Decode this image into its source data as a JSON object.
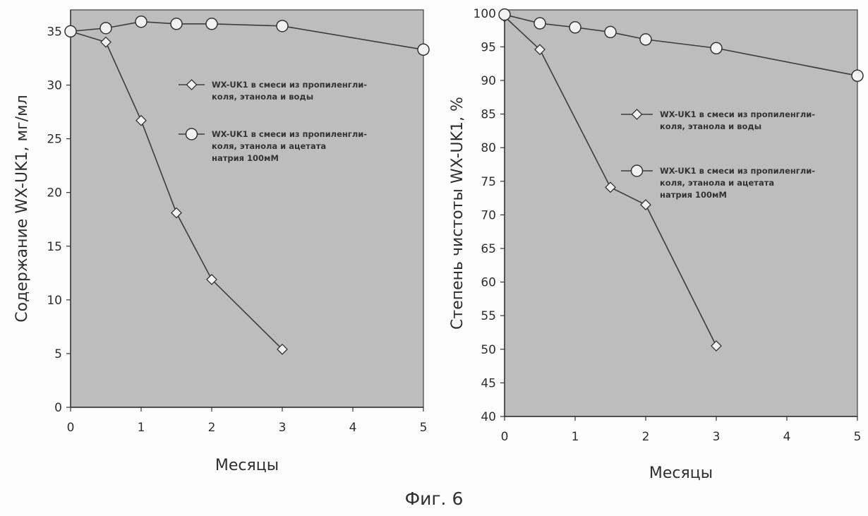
{
  "figure_caption": "Фиг. 6",
  "chart_data": [
    {
      "type": "line",
      "title": "",
      "xlabel": "Месяцы",
      "ylabel": "Содержание WX-UK1, мг/мл",
      "xlim": [
        0,
        5
      ],
      "ylim": [
        0,
        37
      ],
      "xticks": [
        0,
        1,
        2,
        3,
        4,
        5
      ],
      "yticks": [
        0,
        5,
        10,
        15,
        20,
        25,
        30,
        35
      ],
      "grid": false,
      "legend_position": "center-right",
      "series": [
        {
          "name": "WX-UK1 в смеси из пропиленгли-коля, этанола и воды",
          "legend_lines": [
            "WX-UK1 в смеси из пропиленгли-",
            "коля, этанола и воды"
          ],
          "marker": "diamond",
          "x": [
            0,
            0.5,
            1,
            1.5,
            2,
            3
          ],
          "y": [
            35,
            34,
            26.7,
            18.1,
            11.9,
            5.4
          ]
        },
        {
          "name": "WX-UK1 в смеси из пропиленгли-коля, этанола и ацетата натрия 100мМ",
          "legend_lines": [
            "WX-UK1 в смеси из пропиленгли-",
            "коля, этанола и ацетата",
            "натрия 100мМ"
          ],
          "marker": "circle",
          "x": [
            0,
            0.5,
            1,
            1.5,
            2,
            3,
            5
          ],
          "y": [
            35,
            35.3,
            35.9,
            35.7,
            35.7,
            35.5,
            33.3
          ]
        }
      ]
    },
    {
      "type": "line",
      "title": "",
      "xlabel": "Месяцы",
      "ylabel": "Степень чистоты WX-UK1, %",
      "xlim": [
        0,
        5
      ],
      "ylim": [
        40,
        100.5
      ],
      "xticks": [
        0,
        1,
        2,
        3,
        4,
        5
      ],
      "yticks": [
        40,
        45,
        50,
        55,
        60,
        65,
        70,
        75,
        80,
        85,
        90,
        95,
        100
      ],
      "grid": false,
      "legend_position": "center-right",
      "series": [
        {
          "name": "WX-UK1 в смеси из пропиленгли-коля, этанола и воды",
          "legend_lines": [
            "WX-UK1 в смеси из пропиленгли-",
            "коля, этанола и воды"
          ],
          "marker": "diamond",
          "x": [
            0,
            0.5,
            1.5,
            2,
            3
          ],
          "y": [
            99.5,
            94.6,
            74.1,
            71.5,
            50.5
          ]
        },
        {
          "name": "WX-UK1 в смеси из пропиленгли-коля, этанола и ацетата натрия 100мМ",
          "legend_lines": [
            "WX-UK1 в смеси из пропиленгли-",
            "коля, этанола и ацетата",
            "натрия 100мМ"
          ],
          "marker": "circle",
          "x": [
            0,
            0.5,
            1,
            1.5,
            2,
            3,
            5
          ],
          "y": [
            99.8,
            98.5,
            97.9,
            97.2,
            96.1,
            94.8,
            90.7
          ]
        }
      ]
    }
  ]
}
